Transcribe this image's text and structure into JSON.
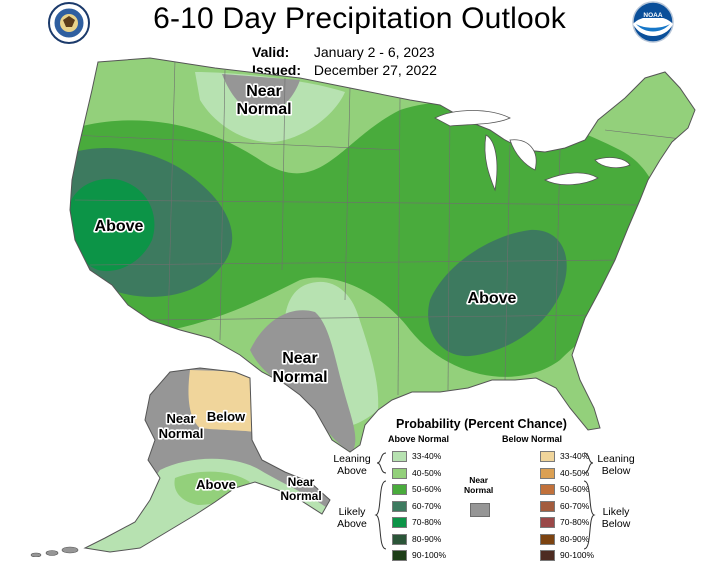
{
  "title": "6-10 Day Precipitation Outlook",
  "valid": {
    "label": "Valid:",
    "value": "January 2 - 6, 2023"
  },
  "issued": {
    "label": "Issued:",
    "value": "December 27, 2022"
  },
  "logos": {
    "left": "doc-seal-icon",
    "right": "noaa-logo-icon"
  },
  "map_labels": {
    "near_normal_north": [
      "Near",
      "Normal"
    ],
    "above_west": "Above",
    "above_southeast": "Above",
    "near_normal_southwest": [
      "Near",
      "Normal"
    ],
    "alaska_near_normal": [
      "Near",
      "Normal"
    ],
    "alaska_below": "Below",
    "alaska_above": "Above",
    "aleutian_near_normal": [
      "Near",
      "Normal"
    ]
  },
  "legend": {
    "title": "Probability (Percent Chance)",
    "above_header": "Above Normal",
    "below_header": "Below Normal",
    "above_items": [
      {
        "label": "33-40%",
        "color": "#b7e2b1"
      },
      {
        "label": "40-50%",
        "color": "#93d07b"
      },
      {
        "label": "50-60%",
        "color": "#49ab3c"
      },
      {
        "label": "60-70%",
        "color": "#3d7a5f"
      },
      {
        "label": "70-80%",
        "color": "#0c9447"
      },
      {
        "label": "80-90%",
        "color": "#2b5538"
      },
      {
        "label": "90-100%",
        "color": "#1d3d17"
      }
    ],
    "below_items": [
      {
        "label": "33-40%",
        "color": "#f0d59b"
      },
      {
        "label": "40-50%",
        "color": "#dba053"
      },
      {
        "label": "50-60%",
        "color": "#c1713b"
      },
      {
        "label": "60-70%",
        "color": "#a35c3d"
      },
      {
        "label": "70-80%",
        "color": "#9a4848"
      },
      {
        "label": "80-90%",
        "color": "#7c4311"
      },
      {
        "label": "90-100%",
        "color": "#4d2b21"
      }
    ],
    "leaning_above": [
      "Leaning",
      "Above"
    ],
    "likely_above": [
      "Likely",
      "Above"
    ],
    "leaning_below": [
      "Leaning",
      "Below"
    ],
    "likely_below": [
      "Likely",
      "Below"
    ],
    "near_normal": [
      "Near",
      "Normal"
    ],
    "near_normal_color": "#969696"
  }
}
